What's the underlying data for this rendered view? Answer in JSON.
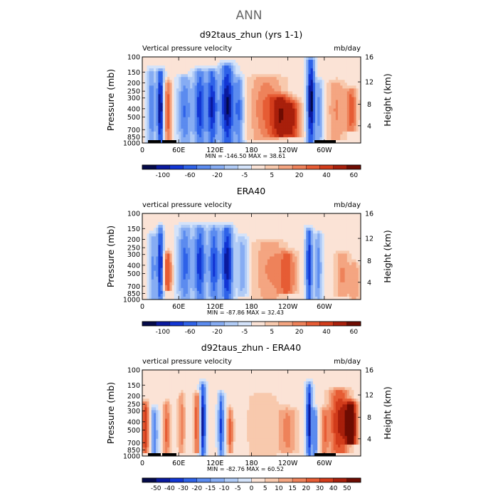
{
  "page_title": "ANN",
  "colors": {
    "cool": [
      "#040a4a",
      "#0a1a9e",
      "#1236d4",
      "#2e62e8",
      "#5b8bef",
      "#86acf3",
      "#b0cbf6",
      "#d4e3fa"
    ],
    "warm": [
      "#fbe3d6",
      "#f8c9ad",
      "#f4a581",
      "#ee825a",
      "#e65c34",
      "#d23c1b",
      "#a81f0b",
      "#6e0c02"
    ]
  },
  "chart_data": [
    {
      "type": "heatmap",
      "title": "d92taus_zhun (yrs 1-1)",
      "subtitle_left": "Vertical pressure velocity",
      "subtitle_right": "mb/day",
      "ylabel": "Pressure (mb)",
      "ylabel_right": "Height (km)",
      "yticks": [
        "100",
        "150",
        "200",
        "250",
        "300",
        "400",
        "500",
        "700",
        "850",
        "1000"
      ],
      "yticks_right": [
        "16",
        "12",
        "8",
        "4"
      ],
      "xticks": [
        "0",
        "60E",
        "120E",
        "180",
        "120W",
        "60W"
      ],
      "stats_text": "MIN = -146.50   MAX =  38.61",
      "min": -146.5,
      "max": 38.61,
      "colorbar_labels": [
        "-100",
        "-60",
        "-20",
        "-5",
        "5",
        "20",
        "40",
        "60"
      ],
      "grid": false
    },
    {
      "type": "heatmap",
      "title": "ERA40",
      "subtitle_left": "vertical pressure velocity",
      "subtitle_right": "mb/day",
      "ylabel": "Pressure (mb)",
      "ylabel_right": "Height (km)",
      "yticks": [
        "100",
        "150",
        "200",
        "250",
        "300",
        "400",
        "500",
        "700",
        "850",
        "1000"
      ],
      "yticks_right": [
        "16",
        "12",
        "8",
        "4"
      ],
      "xticks": [
        "0",
        "60E",
        "120E",
        "180",
        "120W",
        "60W"
      ],
      "stats_text": "MIN = -87.86   MAX =  32.43",
      "min": -87.86,
      "max": 32.43,
      "colorbar_labels": [
        "-100",
        "-60",
        "-20",
        "-5",
        "5",
        "20",
        "40",
        "60"
      ],
      "grid": false
    },
    {
      "type": "heatmap",
      "title": "d92taus_zhun - ERA40",
      "subtitle_left": "vertical pressure velocity",
      "subtitle_right": "mb/day",
      "ylabel": "Pressure (mb)",
      "ylabel_right": "Height (km)",
      "yticks": [
        "100",
        "150",
        "200",
        "250",
        "300",
        "400",
        "500",
        "700",
        "850",
        "1000"
      ],
      "yticks_right": [
        "16",
        "12",
        "8",
        "4"
      ],
      "xticks": [
        "0",
        "60E",
        "120E",
        "180",
        "120W",
        "60W"
      ],
      "stats_text": "MIN = -82.76   MAX =  60.52",
      "min": -82.76,
      "max": 60.52,
      "colorbar_labels": [
        "-50",
        "-40",
        "-30",
        "-20",
        "-15",
        "-10",
        "-5",
        "0",
        "5",
        "10",
        "15",
        "20",
        "30",
        "40",
        "50"
      ],
      "grid": false
    }
  ]
}
